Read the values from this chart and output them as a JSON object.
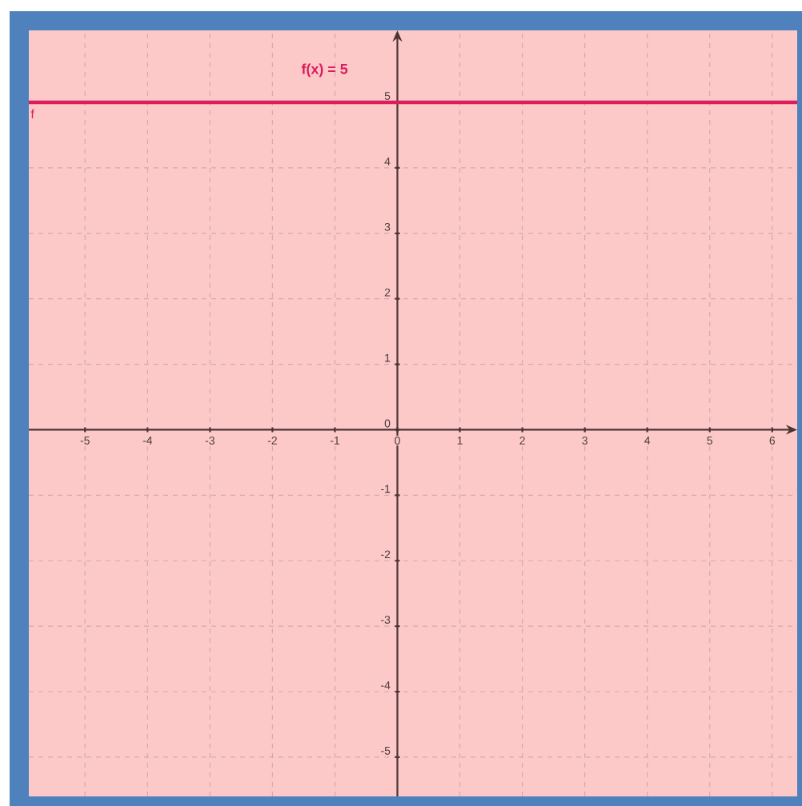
{
  "chart_data": {
    "type": "line",
    "series": [
      {
        "name": "f",
        "color": "#dc1c5c",
        "x": [
          -5.9,
          6.4
        ],
        "values": [
          5,
          5
        ]
      }
    ],
    "annotations": [
      "f(x) = 5"
    ],
    "xlim": [
      -5.9,
      6.4
    ],
    "ylim": [
      -5.6,
      6.1
    ],
    "xticks": [
      -5,
      -4,
      -3,
      -2,
      -1,
      0,
      1,
      2,
      3,
      4,
      5,
      6
    ],
    "yticks": [
      -5,
      -4,
      -3,
      -2,
      -1,
      0,
      1,
      2,
      3,
      4,
      5
    ],
    "grid": true,
    "line_style": "solid"
  }
}
